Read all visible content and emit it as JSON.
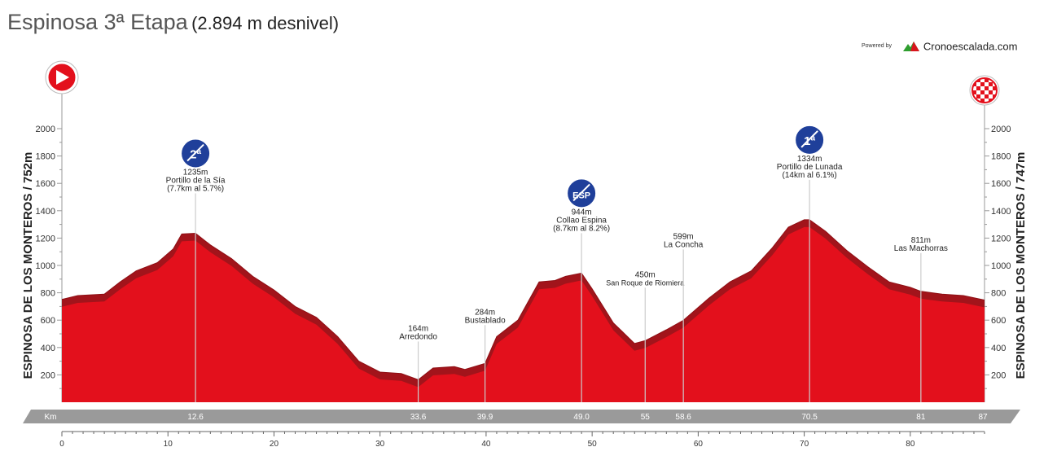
{
  "title": "Espinosa 3ª Etapa",
  "subtitle": "(2.894 m desnivel)",
  "powered_by": "Powered by",
  "brand": "Cronoescalada.com",
  "colors": {
    "fill": "#e3101c",
    "shade": "#a2141b",
    "axis_band": "#9a9a9a",
    "text": "#222222",
    "grid": "#999999"
  },
  "chart_data": {
    "type": "area",
    "xlabel": "Km",
    "ylabel_left": "ESPINOSA DE LOS MONTEROS / 752m",
    "ylabel_right": "ESPINOSA DE LOS MONTEROS / 747m",
    "xlim": [
      0,
      87
    ],
    "ylim": [
      0,
      2000
    ],
    "x_ticks": [
      0,
      10,
      20,
      30,
      40,
      50,
      60,
      70,
      80
    ],
    "y_ticks": [
      200,
      400,
      600,
      800,
      1000,
      1200,
      1400,
      1600,
      1800,
      2000
    ],
    "km_band_labels": [
      "12.6",
      "33.6",
      "39.9",
      "49.0",
      "55",
      "58.6",
      "70.5",
      "81",
      "87"
    ],
    "km_band_values": [
      12.6,
      33.6,
      39.9,
      49.0,
      55,
      58.6,
      70.5,
      81,
      87
    ],
    "profile": [
      {
        "x": 0,
        "y": 752
      },
      {
        "x": 1.5,
        "y": 780
      },
      {
        "x": 4,
        "y": 790
      },
      {
        "x": 5.5,
        "y": 880
      },
      {
        "x": 7,
        "y": 960
      },
      {
        "x": 9,
        "y": 1020
      },
      {
        "x": 10.5,
        "y": 1120
      },
      {
        "x": 11.3,
        "y": 1230
      },
      {
        "x": 12.6,
        "y": 1235
      },
      {
        "x": 14,
        "y": 1150
      },
      {
        "x": 16,
        "y": 1050
      },
      {
        "x": 18,
        "y": 920
      },
      {
        "x": 20,
        "y": 820
      },
      {
        "x": 22,
        "y": 700
      },
      {
        "x": 24,
        "y": 620
      },
      {
        "x": 26,
        "y": 480
      },
      {
        "x": 28,
        "y": 300
      },
      {
        "x": 30,
        "y": 220
      },
      {
        "x": 32,
        "y": 210
      },
      {
        "x": 33.6,
        "y": 164
      },
      {
        "x": 35,
        "y": 250
      },
      {
        "x": 37,
        "y": 260
      },
      {
        "x": 38,
        "y": 240
      },
      {
        "x": 39.9,
        "y": 284
      },
      {
        "x": 41,
        "y": 480
      },
      {
        "x": 43,
        "y": 600
      },
      {
        "x": 45,
        "y": 880
      },
      {
        "x": 46.5,
        "y": 890
      },
      {
        "x": 47.5,
        "y": 920
      },
      {
        "x": 49,
        "y": 944
      },
      {
        "x": 50,
        "y": 830
      },
      {
        "x": 52,
        "y": 580
      },
      {
        "x": 54,
        "y": 430
      },
      {
        "x": 55,
        "y": 450
      },
      {
        "x": 57,
        "y": 530
      },
      {
        "x": 58.6,
        "y": 599
      },
      {
        "x": 61,
        "y": 760
      },
      {
        "x": 63,
        "y": 880
      },
      {
        "x": 65,
        "y": 960
      },
      {
        "x": 67,
        "y": 1130
      },
      {
        "x": 68.5,
        "y": 1280
      },
      {
        "x": 70,
        "y": 1334
      },
      {
        "x": 70.5,
        "y": 1334
      },
      {
        "x": 72,
        "y": 1250
      },
      {
        "x": 74,
        "y": 1110
      },
      {
        "x": 76,
        "y": 990
      },
      {
        "x": 78,
        "y": 880
      },
      {
        "x": 80,
        "y": 840
      },
      {
        "x": 81,
        "y": 811
      },
      {
        "x": 83,
        "y": 790
      },
      {
        "x": 85,
        "y": 780
      },
      {
        "x": 87,
        "y": 747
      }
    ],
    "points_of_interest": [
      {
        "km": 12.6,
        "elev": 1235,
        "label_elev": "1235m",
        "name": "Portillo de la Sía",
        "detail": "(7.7km al 5.7%)",
        "badge": "2ª"
      },
      {
        "km": 33.6,
        "elev": 164,
        "label_elev": "164m",
        "name": "Arredondo",
        "detail": "",
        "badge": ""
      },
      {
        "km": 39.9,
        "elev": 284,
        "label_elev": "284m",
        "name": "Bustablado",
        "detail": "",
        "badge": ""
      },
      {
        "km": 49.0,
        "elev": 944,
        "label_elev": "944m",
        "name": "Collao Espina",
        "detail": "(8.7km al 8.2%)",
        "badge": "ESP"
      },
      {
        "km": 55,
        "elev": 450,
        "label_elev": "450m",
        "name": "San Roque de Riomiera",
        "detail": "",
        "badge": ""
      },
      {
        "km": 58.6,
        "elev": 599,
        "label_elev": "599m",
        "name": "La Concha",
        "detail": "",
        "badge": ""
      },
      {
        "km": 70.5,
        "elev": 1334,
        "label_elev": "1334m",
        "name": "Portillo de Lunada",
        "detail": "(14km al 6.1%)",
        "badge": "1ª"
      },
      {
        "km": 81,
        "elev": 811,
        "label_elev": "811m",
        "name": "Las Machorras",
        "detail": "",
        "badge": ""
      }
    ],
    "start_icon": "play-start-icon",
    "finish_icon": "checkered-finish-icon"
  }
}
